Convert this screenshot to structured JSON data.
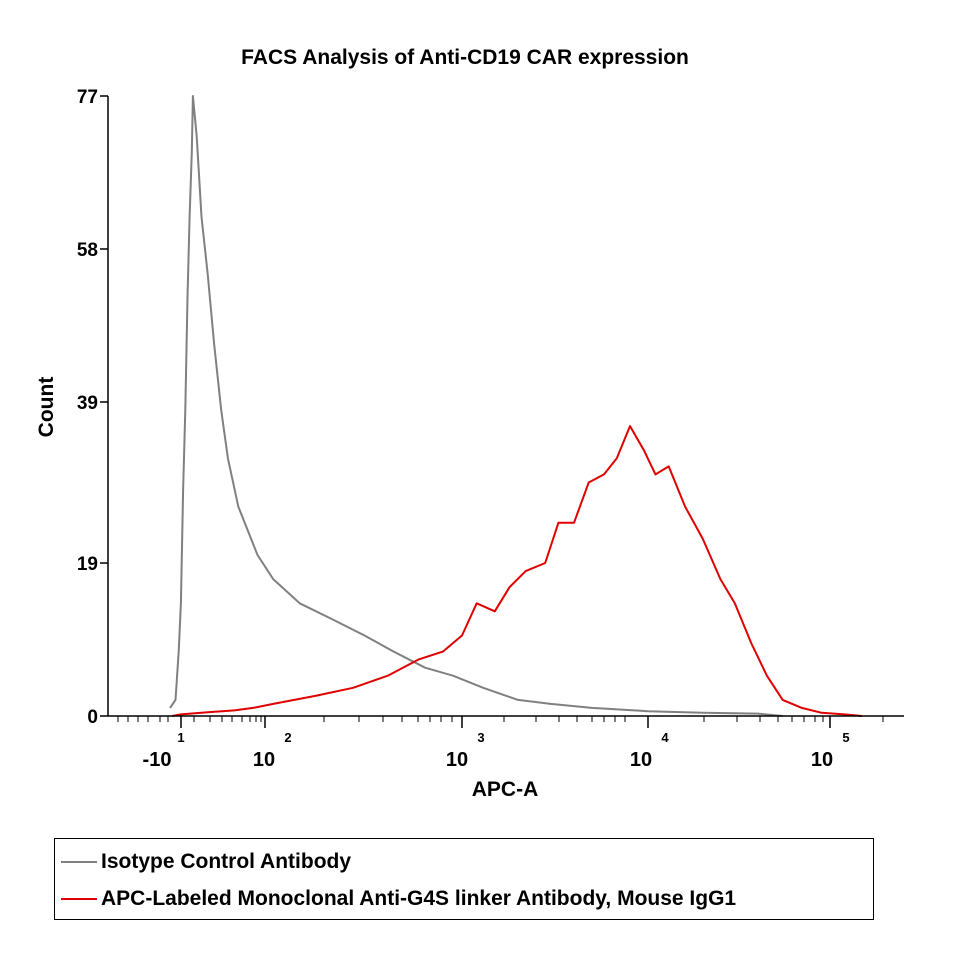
{
  "chart_data": {
    "type": "line",
    "title": "FACS Analysis of Anti-CD19 CAR expression",
    "xlabel": "APC-A",
    "ylabel": "Count",
    "ylim": [
      0,
      77
    ],
    "y_ticks": [
      "0",
      "19",
      "39",
      "58",
      "77"
    ],
    "x_scale": "biexponential (log with linear region near zero)",
    "x_ticks": [
      {
        "label": "-10",
        "exponent": "1"
      },
      {
        "label": "10",
        "exponent": "2"
      },
      {
        "label": "10",
        "exponent": "3"
      },
      {
        "label": "10",
        "exponent": "4"
      },
      {
        "label": "10",
        "exponent": "5"
      }
    ],
    "legend_position": "bottom",
    "series": [
      {
        "name": "Isotype Control Antibody",
        "color": "#808080",
        "points": [
          {
            "x": -10,
            "y": 1
          },
          {
            "x": -5,
            "y": 2
          },
          {
            "x": -2,
            "y": 8
          },
          {
            "x": 0,
            "y": 14
          },
          {
            "x": 2,
            "y": 28
          },
          {
            "x": 4,
            "y": 38
          },
          {
            "x": 6,
            "y": 52
          },
          {
            "x": 8,
            "y": 62
          },
          {
            "x": 10,
            "y": 70
          },
          {
            "x": 11,
            "y": 77
          },
          {
            "x": 13,
            "y": 72
          },
          {
            "x": 15,
            "y": 62
          },
          {
            "x": 18,
            "y": 55
          },
          {
            "x": 22,
            "y": 46
          },
          {
            "x": 27,
            "y": 38
          },
          {
            "x": 33,
            "y": 32
          },
          {
            "x": 45,
            "y": 26
          },
          {
            "x": 60,
            "y": 23
          },
          {
            "x": 80,
            "y": 20
          },
          {
            "x": 110,
            "y": 17
          },
          {
            "x": 150,
            "y": 14
          },
          {
            "x": 220,
            "y": 12
          },
          {
            "x": 320,
            "y": 10
          },
          {
            "x": 450,
            "y": 8
          },
          {
            "x": 650,
            "y": 6
          },
          {
            "x": 900,
            "y": 5
          },
          {
            "x": 1300,
            "y": 3.5
          },
          {
            "x": 2000,
            "y": 2
          },
          {
            "x": 3000,
            "y": 1.5
          },
          {
            "x": 5000,
            "y": 1
          },
          {
            "x": 10000,
            "y": 0.6
          },
          {
            "x": 20000,
            "y": 0.4
          },
          {
            "x": 40000,
            "y": 0.3
          },
          {
            "x": 55000,
            "y": 0
          }
        ]
      },
      {
        "name": "APC-Labeled Monoclonal Anti-G4S linker Antibody, Mouse IgG1",
        "color": "#e00000",
        "points": [
          {
            "x": -8,
            "y": 0
          },
          {
            "x": 0,
            "y": 0.2
          },
          {
            "x": 20,
            "y": 0.5
          },
          {
            "x": 40,
            "y": 0.7
          },
          {
            "x": 70,
            "y": 1
          },
          {
            "x": 110,
            "y": 1.5
          },
          {
            "x": 180,
            "y": 2.5
          },
          {
            "x": 280,
            "y": 3.5
          },
          {
            "x": 420,
            "y": 5
          },
          {
            "x": 600,
            "y": 7
          },
          {
            "x": 800,
            "y": 8
          },
          {
            "x": 1000,
            "y": 10
          },
          {
            "x": 1200,
            "y": 14
          },
          {
            "x": 1500,
            "y": 13
          },
          {
            "x": 1800,
            "y": 16
          },
          {
            "x": 2200,
            "y": 18
          },
          {
            "x": 2800,
            "y": 19
          },
          {
            "x": 3300,
            "y": 24
          },
          {
            "x": 4000,
            "y": 24
          },
          {
            "x": 4800,
            "y": 29
          },
          {
            "x": 5800,
            "y": 30
          },
          {
            "x": 6800,
            "y": 32
          },
          {
            "x": 8000,
            "y": 36
          },
          {
            "x": 9500,
            "y": 33
          },
          {
            "x": 11000,
            "y": 30
          },
          {
            "x": 13000,
            "y": 31
          },
          {
            "x": 16000,
            "y": 26
          },
          {
            "x": 20000,
            "y": 22
          },
          {
            "x": 25000,
            "y": 17
          },
          {
            "x": 30000,
            "y": 14
          },
          {
            "x": 37000,
            "y": 9
          },
          {
            "x": 45000,
            "y": 5
          },
          {
            "x": 55000,
            "y": 2
          },
          {
            "x": 70000,
            "y": 1
          },
          {
            "x": 90000,
            "y": 0.4
          },
          {
            "x": 120000,
            "y": 0.2
          },
          {
            "x": 150000,
            "y": 0
          }
        ]
      }
    ]
  }
}
